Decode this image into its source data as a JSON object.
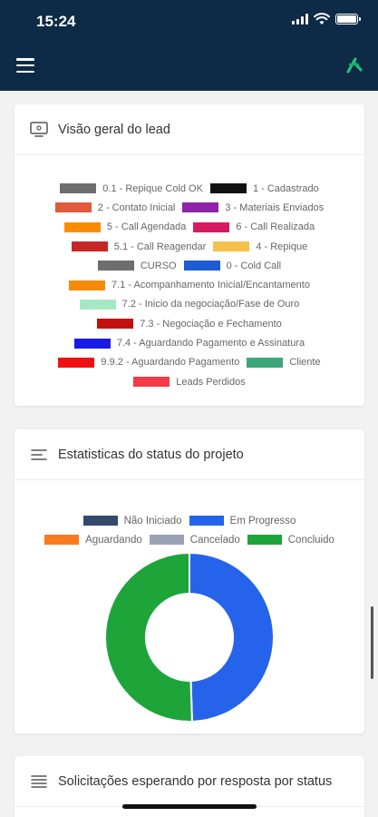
{
  "status_bar": {
    "time": "15:24"
  },
  "header": {
    "menu_icon": "hamburger-menu-icon",
    "logo_icon": "app-logo-icon",
    "background": "#0d2a47"
  },
  "lead_overview": {
    "title": "Visão geral do lead",
    "legend": [
      [
        {
          "label": "0.1 - Repique Cold OK",
          "color": "#6e6e6e"
        },
        {
          "label": "1 - Cadastrado",
          "color": "#111111"
        }
      ],
      [
        {
          "label": "2 - Contato Inicial",
          "color": "#e05a3c"
        },
        {
          "label": "3 - Materiais Enviados",
          "color": "#8e24aa"
        }
      ],
      [
        {
          "label": "5 - Call Agendada",
          "color": "#fb8c00"
        },
        {
          "label": "6 - Call Realizada",
          "color": "#d81b60"
        }
      ],
      [
        {
          "label": "5.1 - Call Reagendar",
          "color": "#c62828"
        },
        {
          "label": "4 - Repique",
          "color": "#f6c14b"
        }
      ],
      [
        {
          "label": "CURSO",
          "color": "#6e6e6e"
        },
        {
          "label": "0 - Cold Call",
          "color": "#1e5bd6"
        }
      ],
      [
        {
          "label": "7.1 - Acompanhamento Inicial/Encantamento",
          "color": "#f58a0b"
        }
      ],
      [
        {
          "label": "7.2 - Inicio da negociação/Fase de Ouro",
          "color": "#a6e8c4"
        }
      ],
      [
        {
          "label": "7.3 - Negociação e Fechamento",
          "color": "#c40f0f"
        }
      ],
      [
        {
          "label": "7.4 - Aguardando Pagamento e Assinatura",
          "color": "#1a1ae6"
        }
      ],
      [
        {
          "label": "9.9.2 - Aguardando Pagamento",
          "color": "#ee1111"
        },
        {
          "label": "Cliente",
          "color": "#3aa87a"
        }
      ],
      [
        {
          "label": "Leads Perdidos",
          "color": "#f23a48"
        }
      ]
    ]
  },
  "project_status": {
    "title": "Estatisticas do status do projeto",
    "chart_data": {
      "type": "pie",
      "donut": true,
      "labels": [
        "Não Iniciado",
        "Em Progresso",
        "Aguardando",
        "Cancelado",
        "Concluido"
      ],
      "values": [
        0,
        49.5,
        0,
        0,
        50.5
      ],
      "colors": [
        "#34496b",
        "#2563eb",
        "#f97a1f",
        "#9aa3b5",
        "#1ea53a"
      ],
      "legend_rows": [
        [
          0,
          1
        ],
        [
          2,
          3,
          4
        ]
      ],
      "legend_position": "top"
    }
  },
  "requests": {
    "title": "Solicitações esperando por resposta por status"
  }
}
